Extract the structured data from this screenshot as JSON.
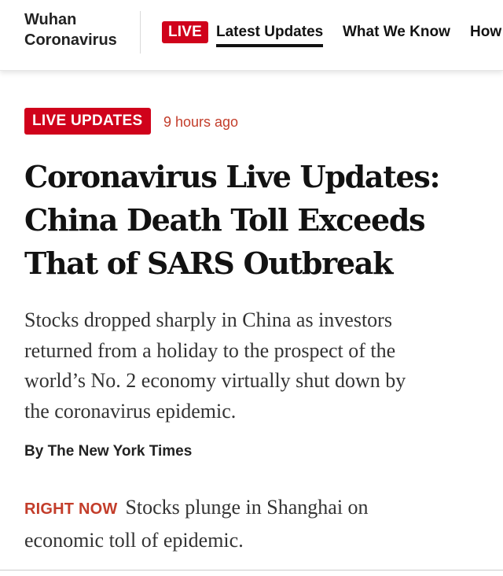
{
  "nav": {
    "section_title_line1": "Wuhan",
    "section_title_line2": "Coronavirus",
    "live_label": "LIVE",
    "links": [
      {
        "label": "Latest Updates",
        "active": true
      },
      {
        "label": "What We Know",
        "active": false
      },
      {
        "label": "How",
        "active": false
      }
    ]
  },
  "article": {
    "kicker": "LIVE UPDATES",
    "timestamp": "9 hours ago",
    "headline_lines": [
      "Coronavirus Live Updates:",
      "China Death Toll Exceeds",
      "That of SARS Outbreak"
    ],
    "summary_lines": [
      "Stocks dropped sharply in China as investors",
      "returned from a holiday to the prospect of the",
      "world’s No. 2 economy virtually shut down by",
      "the coronavirus epidemic."
    ],
    "byline": "By The New York Times",
    "right_now": {
      "label": "RIGHT NOW",
      "text_line1": "Stocks plunge in Shanghai on",
      "text_line2": "economic toll of epidemic."
    }
  },
  "colors": {
    "live_red": "#d0021b",
    "accent_red_text": "#c33d2a",
    "text_primary": "#121212"
  }
}
